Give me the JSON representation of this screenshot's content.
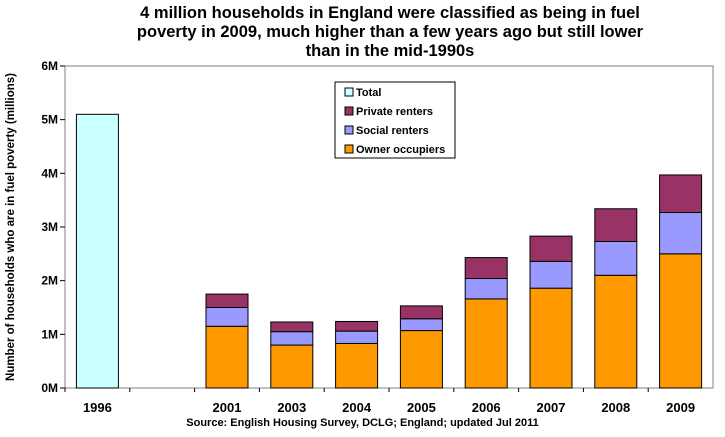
{
  "chart_data": {
    "type": "bar",
    "stacked": true,
    "title": "4 million households in England were classified as being in fuel\npoverty in 2009, much higher than a few years ago but still lower\nthan in the mid-1990s",
    "xlabel": "",
    "ylabel": "Number of households who are in fuel poverty (millions)",
    "ylim": [
      0,
      6
    ],
    "yticks": [
      0,
      1,
      2,
      3,
      4,
      5,
      6
    ],
    "ytick_labels": [
      "0M",
      "1M",
      "2M",
      "3M",
      "4M",
      "5M",
      "6M"
    ],
    "categories": [
      "1996",
      "",
      "2001",
      "2003",
      "2004",
      "2005",
      "2006",
      "2007",
      "2008",
      "2009"
    ],
    "series": [
      {
        "name": "Owner occupiers",
        "color": "#ff9900",
        "values": [
          null,
          null,
          1.15,
          0.8,
          0.83,
          1.07,
          1.66,
          1.86,
          2.1,
          2.5
        ]
      },
      {
        "name": "Social renters",
        "color": "#9999ff",
        "values": [
          null,
          null,
          0.35,
          0.25,
          0.23,
          0.22,
          0.38,
          0.5,
          0.63,
          0.77
        ]
      },
      {
        "name": "Private renters",
        "color": "#993366",
        "values": [
          null,
          null,
          0.25,
          0.18,
          0.18,
          0.24,
          0.39,
          0.47,
          0.61,
          0.7
        ]
      },
      {
        "name": "Total",
        "color": "#ccffff",
        "values": [
          5.1,
          null,
          null,
          null,
          null,
          null,
          null,
          null,
          null,
          null
        ]
      }
    ],
    "legend": {
      "position": "top-center",
      "entries": [
        "Total",
        "Private renters",
        "Social renters",
        "Owner occupiers"
      ]
    },
    "grid": false,
    "source": "Source: English Housing Survey, DCLG; England; updated Jul 2011"
  }
}
